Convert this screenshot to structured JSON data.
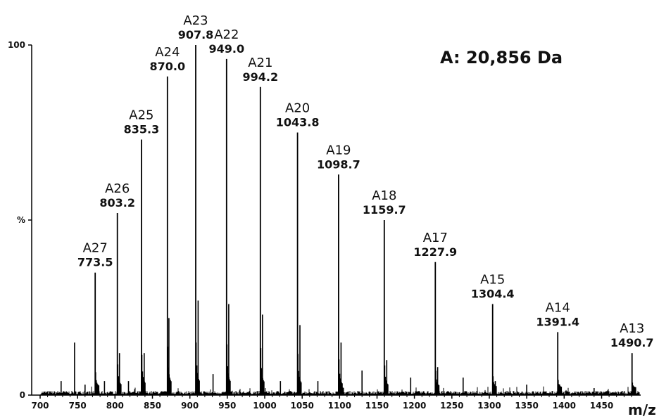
{
  "chart_data": {
    "type": "line",
    "title": "A: 20,856 Da",
    "xlabel": "m/z",
    "ylabel": "%",
    "xlim": [
      700,
      1490
    ],
    "ylim": [
      0,
      100
    ],
    "x_ticks": [
      "700",
      "750",
      "800",
      "850",
      "900",
      "950",
      "1000",
      "1050",
      "1100",
      "1150",
      "1200",
      "1250",
      "1300",
      "1350",
      "1400",
      "1450"
    ],
    "y_ticks": [
      "0",
      "%",
      "100"
    ],
    "grid": false,
    "series": [
      {
        "peaks": [
          {
            "label": "A27",
            "mz": 773.5,
            "mz_label": "773.5",
            "intensity": 35
          },
          {
            "label": "A26",
            "mz": 803.2,
            "mz_label": "803.2",
            "intensity": 52
          },
          {
            "label": "A25",
            "mz": 835.3,
            "mz_label": "835.3",
            "intensity": 73
          },
          {
            "label": "A24",
            "mz": 870.0,
            "mz_label": "870.0",
            "intensity": 91
          },
          {
            "label": "A23",
            "mz": 907.8,
            "mz_label": "907.8",
            "intensity": 100
          },
          {
            "label": "A22",
            "mz": 949.0,
            "mz_label": "949.0",
            "intensity": 96
          },
          {
            "label": "A21",
            "mz": 994.2,
            "mz_label": "994.2",
            "intensity": 88
          },
          {
            "label": "A20",
            "mz": 1043.8,
            "mz_label": "1043.8",
            "intensity": 75
          },
          {
            "label": "A19",
            "mz": 1098.7,
            "mz_label": "1098.7",
            "intensity": 63
          },
          {
            "label": "A18",
            "mz": 1159.7,
            "mz_label": "1159.7",
            "intensity": 50
          },
          {
            "label": "A17",
            "mz": 1227.9,
            "mz_label": "1227.9",
            "intensity": 38
          },
          {
            "label": "A15",
            "mz": 1304.4,
            "mz_label": "1304.4",
            "intensity": 26
          },
          {
            "label": "A14",
            "mz": 1391.4,
            "mz_label": "1391.4",
            "intensity": 18
          },
          {
            "label": "A13",
            "mz": 1490.7,
            "mz_label": "1490.7",
            "intensity": 12
          }
        ],
        "minor_peaks": [
          {
            "mz": 746,
            "intensity": 15
          },
          {
            "mz": 728,
            "intensity": 4
          },
          {
            "mz": 760,
            "intensity": 3
          },
          {
            "mz": 786,
            "intensity": 4
          },
          {
            "mz": 806,
            "intensity": 12
          },
          {
            "mz": 818,
            "intensity": 4
          },
          {
            "mz": 839,
            "intensity": 12
          },
          {
            "mz": 872,
            "intensity": 22
          },
          {
            "mz": 911,
            "intensity": 27
          },
          {
            "mz": 931,
            "intensity": 6
          },
          {
            "mz": 952,
            "intensity": 26
          },
          {
            "mz": 997,
            "intensity": 23
          },
          {
            "mz": 1021,
            "intensity": 4
          },
          {
            "mz": 1047,
            "intensity": 20
          },
          {
            "mz": 1071,
            "intensity": 4
          },
          {
            "mz": 1102,
            "intensity": 15
          },
          {
            "mz": 1130,
            "intensity": 7
          },
          {
            "mz": 1163,
            "intensity": 10
          },
          {
            "mz": 1195,
            "intensity": 5
          },
          {
            "mz": 1231,
            "intensity": 8
          },
          {
            "mz": 1265,
            "intensity": 5
          },
          {
            "mz": 1308,
            "intensity": 4
          },
          {
            "mz": 1350,
            "intensity": 3
          },
          {
            "mz": 1394,
            "intensity": 3
          },
          {
            "mz": 1440,
            "intensity": 2
          }
        ]
      }
    ]
  }
}
